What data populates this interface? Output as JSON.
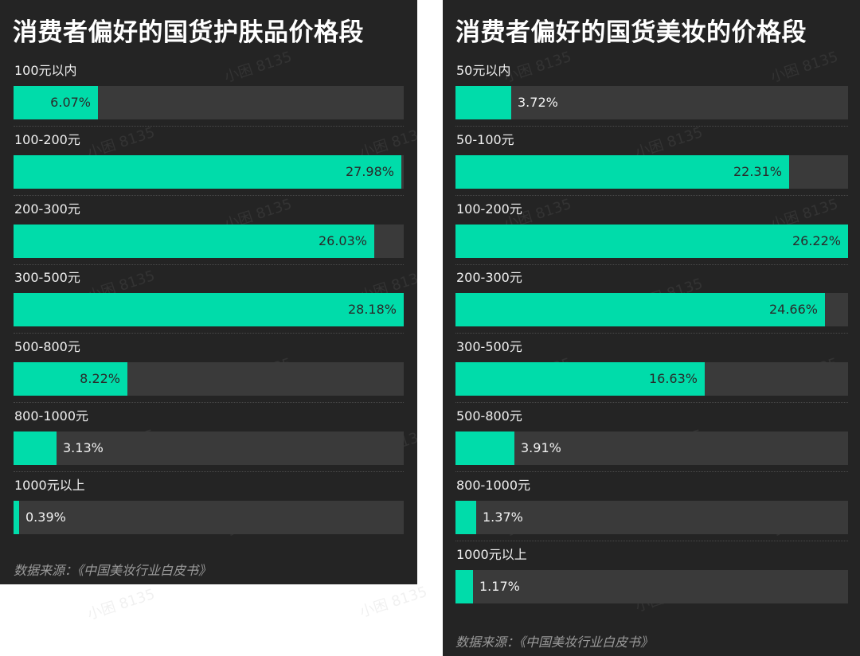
{
  "panels": [
    {
      "title": "消费者偏好的国货护肤品价格段",
      "source": "数据来源：《中国美妆行业白皮书》",
      "max_value": 28.18,
      "rows": [
        {
          "label": "100元以内",
          "value": 6.07,
          "display": "6.07%"
        },
        {
          "label": "100-200元",
          "value": 27.98,
          "display": "27.98%"
        },
        {
          "label": "200-300元",
          "value": 26.03,
          "display": "26.03%"
        },
        {
          "label": "300-500元",
          "value": 28.18,
          "display": "28.18%"
        },
        {
          "label": "500-800元",
          "value": 8.22,
          "display": "8.22%"
        },
        {
          "label": "800-1000元",
          "value": 3.13,
          "display": "3.13%"
        },
        {
          "label": "1000元以上",
          "value": 0.39,
          "display": "0.39%"
        }
      ]
    },
    {
      "title": "消费者偏好的国货美妆的价格段",
      "source": "数据来源：《中国美妆行业白皮书》",
      "max_value": 26.22,
      "rows": [
        {
          "label": "50元以内",
          "value": 3.72,
          "display": "3.72%"
        },
        {
          "label": "50-100元",
          "value": 22.31,
          "display": "22.31%"
        },
        {
          "label": "100-200元",
          "value": 26.22,
          "display": "26.22%"
        },
        {
          "label": "200-300元",
          "value": 24.66,
          "display": "24.66%"
        },
        {
          "label": "300-500元",
          "value": 16.63,
          "display": "16.63%"
        },
        {
          "label": "500-800元",
          "value": 3.91,
          "display": "3.91%"
        },
        {
          "label": "800-1000元",
          "value": 1.37,
          "display": "1.37%"
        },
        {
          "label": "1000元以上",
          "value": 1.17,
          "display": "1.17%"
        }
      ]
    }
  ],
  "watermark": "小困 8135",
  "colors": {
    "panel_bg": "#242424",
    "bar_fill": "#00dcaa",
    "bar_track": "#3a3a3a",
    "title": "#ffffff",
    "source": "#9a9a9a"
  },
  "chart_data": [
    {
      "type": "bar",
      "orientation": "horizontal",
      "title": "消费者偏好的国货护肤品价格段",
      "categories": [
        "100元以内",
        "100-200元",
        "200-300元",
        "300-500元",
        "500-800元",
        "800-1000元",
        "1000元以上"
      ],
      "values": [
        6.07,
        27.98,
        26.03,
        28.18,
        8.22,
        3.13,
        0.39
      ],
      "unit": "%",
      "xlabel": "",
      "ylabel": "",
      "xlim": [
        0,
        28.18
      ],
      "grid": false,
      "legend": null,
      "annotation": "数据来源：《中国美妆行业白皮书》"
    },
    {
      "type": "bar",
      "orientation": "horizontal",
      "title": "消费者偏好的国货美妆的价格段",
      "categories": [
        "50元以内",
        "50-100元",
        "100-200元",
        "200-300元",
        "300-500元",
        "500-800元",
        "800-1000元",
        "1000元以上"
      ],
      "values": [
        3.72,
        22.31,
        26.22,
        24.66,
        16.63,
        3.91,
        1.37,
        1.17
      ],
      "unit": "%",
      "xlabel": "",
      "ylabel": "",
      "xlim": [
        0,
        26.22
      ],
      "grid": false,
      "legend": null,
      "annotation": "数据来源：《中国美妆行业白皮书》"
    }
  ]
}
